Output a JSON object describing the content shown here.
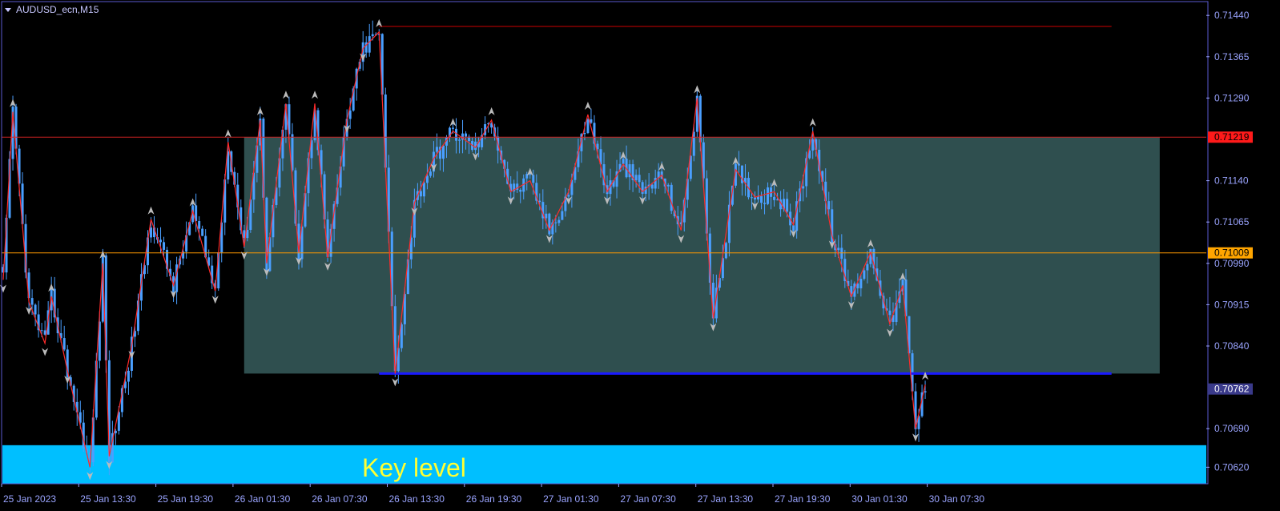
{
  "chart_data": {
    "type": "candlestick",
    "symbol_title": "AUDUSD_ecn,M15",
    "ylim": [
      0.7059,
      0.71465
    ],
    "y_ticks": [
      0.7144,
      0.71365,
      0.7129,
      0.7114,
      0.71065,
      0.7099,
      0.70915,
      0.7084,
      0.7069,
      0.7062
    ],
    "y_tick_labels": [
      "0.71440",
      "0.71365",
      "0.71290",
      "0.71140",
      "0.71065",
      "0.70990",
      "0.70915",
      "0.70840",
      "0.70690",
      "0.70620"
    ],
    "x_tick_labels": [
      "25 Jan 2023",
      "25 Jan 13:30",
      "25 Jan 19:30",
      "26 Jan 01:30",
      "26 Jan 07:30",
      "26 Jan 13:30",
      "26 Jan 19:30",
      "27 Jan 01:30",
      "27 Jan 07:30",
      "27 Jan 13:30",
      "27 Jan 19:30",
      "30 Jan 01:30",
      "30 Jan 07:30"
    ],
    "zigzag": [
      [
        0,
        0.7096
      ],
      [
        3,
        0.71265
      ],
      [
        8,
        0.7092
      ],
      [
        13,
        0.70845
      ],
      [
        15,
        0.7093
      ],
      [
        20,
        0.70795
      ],
      [
        27,
        0.7062
      ],
      [
        31,
        0.7099
      ],
      [
        33,
        0.7064
      ],
      [
        40,
        0.7084
      ],
      [
        46,
        0.7107
      ],
      [
        53,
        0.7095
      ],
      [
        59,
        0.71085
      ],
      [
        66,
        0.7094
      ],
      [
        70,
        0.7121
      ],
      [
        75,
        0.7102
      ],
      [
        80,
        0.7125
      ],
      [
        82,
        0.7099
      ],
      [
        88,
        0.7128
      ],
      [
        92,
        0.7101
      ],
      [
        97,
        0.7128
      ],
      [
        101,
        0.71
      ],
      [
        107,
        0.7125
      ],
      [
        112,
        0.7138
      ],
      [
        117,
        0.7141
      ],
      [
        122,
        0.7079
      ],
      [
        128,
        0.711
      ],
      [
        134,
        0.7118
      ],
      [
        140,
        0.7123
      ],
      [
        147,
        0.712
      ],
      [
        152,
        0.7125
      ],
      [
        158,
        0.7112
      ],
      [
        164,
        0.7114
      ],
      [
        170,
        0.7105
      ],
      [
        176,
        0.7112
      ],
      [
        182,
        0.7126
      ],
      [
        188,
        0.7112
      ],
      [
        193,
        0.7117
      ],
      [
        199,
        0.7112
      ],
      [
        205,
        0.7115
      ],
      [
        211,
        0.7105
      ],
      [
        216,
        0.7129
      ],
      [
        221,
        0.7089
      ],
      [
        228,
        0.7116
      ],
      [
        234,
        0.7111
      ],
      [
        240,
        0.7112
      ],
      [
        246,
        0.7106
      ],
      [
        252,
        0.7123
      ],
      [
        258,
        0.7104
      ],
      [
        264,
        0.7093
      ],
      [
        270,
        0.7101
      ],
      [
        276,
        0.7088
      ],
      [
        280,
        0.7095
      ],
      [
        284,
        0.7069
      ],
      [
        287,
        0.7077
      ]
    ],
    "resistance_level": 0.7142,
    "upper_level": 0.71219,
    "upper_label": "0.71219",
    "mid_level": 0.71009,
    "mid_label": "0.71009",
    "support_level": 0.7079,
    "current_price": 0.70762,
    "current_label": "0.70762",
    "range_box": {
      "start_index": 75,
      "end_index": 360,
      "top": 0.71219,
      "bottom": 0.7079
    },
    "key_level_zone": {
      "top": 0.7066,
      "bottom": 0.7059,
      "label": "Key level"
    },
    "colors": {
      "background": "#000000",
      "candle": "#4a9fff",
      "zigzag": "#ff2a2a",
      "resistance": "#cc0000",
      "upper_level": "#cc2222",
      "mid_level": "#ff9900",
      "support": "#1a1aff",
      "range_box": "#2f4f4f",
      "key_zone": "#00bfff",
      "key_text": "#ffff33",
      "axis_text": "#9aa4ff",
      "current_badge": "#3a3a8a"
    }
  }
}
